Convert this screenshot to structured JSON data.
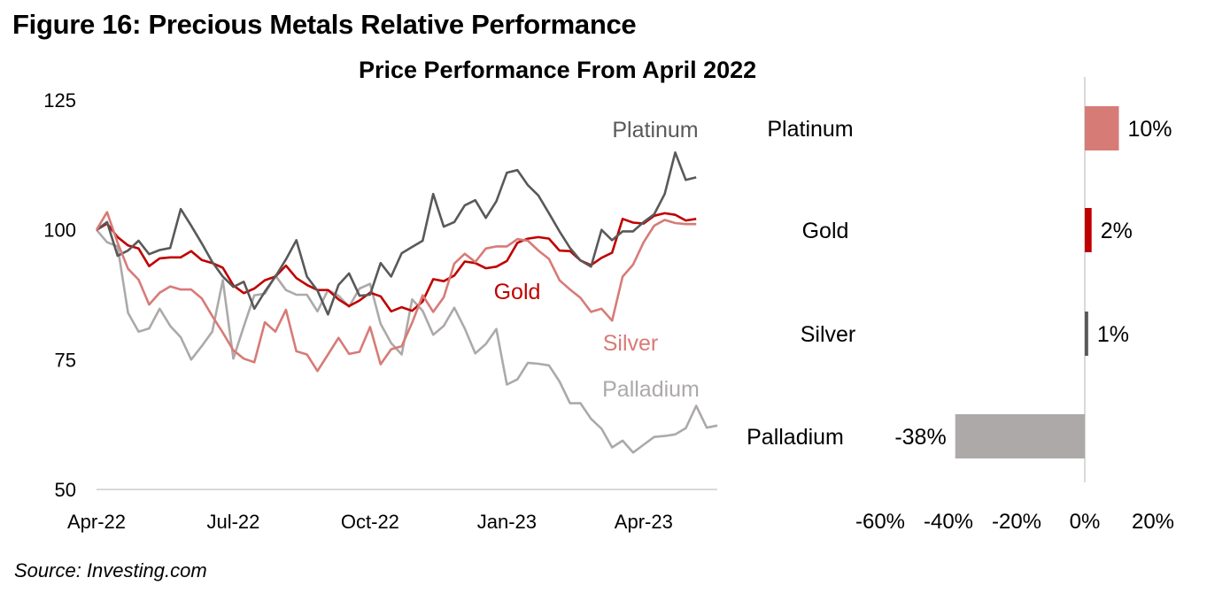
{
  "figure_title": "Figure 16: Precious Metals Relative Performance",
  "source": "Source: Investing.com",
  "chart_data": [
    {
      "type": "line",
      "title": "Price Performance From April 2022",
      "xlabel": "",
      "ylabel": "",
      "ylim": [
        50,
        125
      ],
      "yticks": [
        "125",
        "100",
        "75",
        "50"
      ],
      "ytick_values": [
        125,
        100,
        75,
        50
      ],
      "xticks": [
        "Apr-22",
        "Jul-22",
        "Oct-22",
        "Jan-23",
        "Apr-23"
      ],
      "xtick_index": [
        0,
        13,
        26,
        39,
        52
      ],
      "grid": false,
      "series": [
        {
          "name": "Platinum",
          "color": "#595959",
          "values": [
            100,
            101.5,
            95,
            96,
            97.9,
            95.3,
            96.1,
            96.5,
            104,
            100.8,
            97.4,
            93.8,
            91,
            89,
            90,
            84.8,
            88.1,
            91,
            94.3,
            98,
            91,
            88.3,
            83.7,
            89.4,
            91.6,
            87.3,
            87.5,
            93.6,
            91,
            95.5,
            96.7,
            97.9,
            106.9,
            100.6,
            101.5,
            104.7,
            105.7,
            102.3,
            105.5,
            111,
            111.5,
            108.6,
            106.6,
            103.2,
            99.7,
            96.5,
            94.1,
            92.9,
            100,
            98,
            99.7,
            99.7,
            101.5,
            103,
            106.9,
            114.9,
            109.6,
            110.1
          ]
        },
        {
          "name": "Gold",
          "color": "#C00000",
          "values": [
            100,
            101.2,
            98.6,
            97,
            96.4,
            93,
            94.5,
            94.7,
            94.7,
            95.9,
            94.2,
            93.6,
            92.7,
            89.3,
            87.8,
            88.7,
            90.3,
            91,
            93.1,
            90.7,
            89.4,
            88.4,
            88.4,
            86.6,
            85.3,
            86.4,
            87.9,
            87.2,
            84.3,
            85.1,
            84.4,
            86.2,
            90.5,
            90.1,
            91.2,
            93.9,
            93.6,
            92.6,
            92.9,
            94,
            97.5,
            98.3,
            98.6,
            98.3,
            96,
            95.9,
            94.1,
            93.2,
            94.6,
            95.6,
            102.1,
            101.4,
            101.2,
            102.7,
            103.2,
            102.9,
            101.8,
            102.1
          ]
        },
        {
          "name": "Silver",
          "color": "#D77B77",
          "values": [
            100,
            103.4,
            97.5,
            92.5,
            90.4,
            85.6,
            87.9,
            89.1,
            88.5,
            88.5,
            86.8,
            83.4,
            80.2,
            76.8,
            75.2,
            74.5,
            82.2,
            80.4,
            84.6,
            76.6,
            76,
            72.8,
            76,
            79.2,
            76.1,
            76.5,
            81.3,
            74.1,
            77,
            77.6,
            82.1,
            87.4,
            84.2,
            87,
            93.5,
            95.4,
            93.8,
            96.4,
            96.8,
            96.8,
            98.2,
            97.9,
            96,
            94.4,
            90.3,
            88.5,
            86.9,
            84.2,
            84.8,
            82.5,
            91,
            93.3,
            97.6,
            100.8,
            101.9,
            101.3,
            101.1,
            101.1
          ]
        },
        {
          "name": "Palladium",
          "color": "#ADA9A9",
          "values": [
            100,
            97.6,
            96.8,
            84,
            80.4,
            81,
            84.8,
            81.5,
            79.3,
            75,
            77.6,
            80.4,
            90.3,
            75.2,
            81.4,
            87.4,
            87.7,
            91.2,
            88.4,
            87.5,
            87.5,
            84.3,
            88.4,
            87.3,
            85.2,
            88.7,
            89.6,
            81.9,
            78.2,
            76,
            86.6,
            84.4,
            79.8,
            81.5,
            85,
            81,
            76.2,
            78,
            80.9,
            70.2,
            71.2,
            74.4,
            74.2,
            73.9,
            70.8,
            66.6,
            66.6,
            63.6,
            61.7,
            58.1,
            59.4,
            57.1,
            58.6,
            60.1,
            60.3,
            60.6,
            61.8,
            66.1,
            61.9,
            62.3
          ]
        }
      ],
      "series_labels": [
        "Platinum",
        "Gold",
        "Silver",
        "Palladium"
      ]
    },
    {
      "type": "bar",
      "orientation": "horizontal",
      "categories": [
        "Platinum",
        "Gold",
        "Silver",
        "Palladium"
      ],
      "values": [
        10,
        2,
        1,
        -38
      ],
      "value_labels": [
        "10%",
        "2%",
        "1%",
        "-38%"
      ],
      "colors": [
        "#D77B77",
        "#C00000",
        "#595959",
        "#ADA9A9"
      ],
      "xlim": [
        -60,
        20
      ],
      "xticks": [
        "-60%",
        "-40%",
        "-20%",
        "0%",
        "20%"
      ],
      "xtick_values": [
        -60,
        -40,
        -20,
        0,
        20
      ],
      "grid": false
    }
  ]
}
